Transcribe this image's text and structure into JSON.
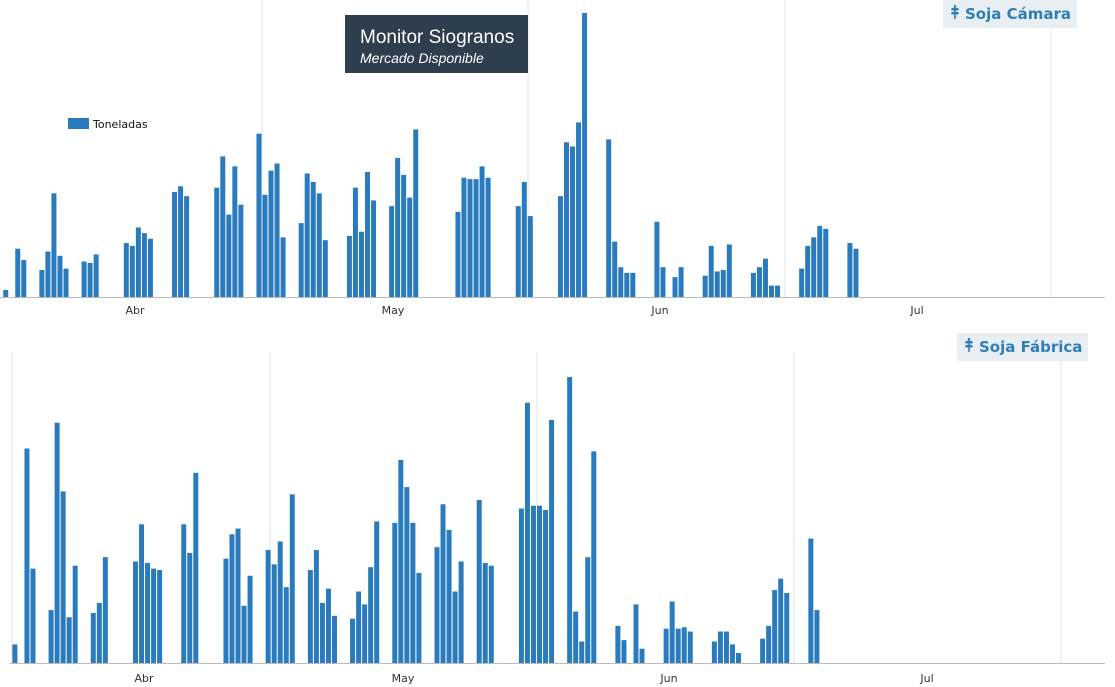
{
  "header": {
    "title": "Monitor Siogranos",
    "subtitle": "Mercado Disponible"
  },
  "colors": {
    "bar": "#2a7bbd",
    "gridline": "#e3e3e3",
    "axis": "#bbbbbb"
  },
  "chart_data": [
    {
      "type": "bar",
      "title": "Soja Cámara",
      "title_icon": "wheat-icon",
      "legend": {
        "entries": [
          "Toneladas"
        ],
        "placement": "top-left"
      },
      "grid": {
        "vertical": true,
        "horizontal": false
      },
      "month_labels": [
        "Abr",
        "May",
        "Jun",
        "Jul"
      ],
      "ylim": [
        0,
        100
      ],
      "series": [
        {
          "name": "Toneladas",
          "values": [
            2.5,
            0,
            17,
            13,
            0,
            0,
            9.5,
            16,
            36.5,
            14.5,
            10,
            0,
            0,
            12.5,
            12,
            15,
            0,
            0,
            0,
            0,
            19,
            18,
            24.5,
            22.5,
            20.5,
            0,
            0,
            0,
            37,
            39,
            35.5,
            0,
            0,
            0,
            0,
            38.5,
            49.5,
            29,
            46,
            32.5,
            0,
            0,
            57.5,
            36,
            44.5,
            47,
            21,
            0,
            0,
            26,
            43.5,
            40.5,
            36.5,
            20,
            0,
            0,
            0,
            21.5,
            38.5,
            23,
            44,
            34,
            0,
            0,
            32,
            49,
            43,
            35,
            59,
            0,
            0,
            0,
            0,
            0,
            0,
            30,
            42,
            41.5,
            41.5,
            46,
            42,
            0,
            0,
            0,
            0,
            32,
            40.5,
            28.5,
            0,
            0,
            0,
            0,
            35.5,
            54.5,
            53,
            61.5,
            100,
            0,
            0,
            0,
            55.5,
            19.5,
            10.5,
            8.5,
            8.5,
            0,
            0,
            0,
            26.5,
            10.5,
            0,
            7,
            10.5,
            0,
            0,
            0,
            7.5,
            18,
            9,
            9.5,
            18.5,
            0,
            0,
            0,
            8.5,
            10.5,
            13.5,
            4,
            4,
            0,
            0,
            0,
            10,
            18,
            21,
            25,
            24,
            0,
            0,
            0,
            19,
            17
          ]
        }
      ]
    },
    {
      "type": "bar",
      "title": "Soja Fábrica",
      "title_icon": "wheat-icon",
      "grid": {
        "vertical": true,
        "horizontal": false
      },
      "month_labels": [
        "Abr",
        "May",
        "Jun",
        "Jul"
      ],
      "ylim": [
        0,
        100
      ],
      "series": [
        {
          "name": "Toneladas",
          "values": [
            6.5,
            0,
            75,
            33,
            0,
            0,
            18.5,
            84,
            60,
            16,
            34,
            0,
            0,
            17.5,
            21,
            37,
            0,
            0,
            0,
            0,
            35.5,
            48.5,
            35,
            33,
            32.5,
            0,
            0,
            0,
            48.5,
            38.5,
            66.5,
            0,
            0,
            0,
            0,
            36.5,
            45,
            47,
            20,
            30.5,
            0,
            0,
            39.5,
            34.5,
            42.5,
            26.5,
            59,
            0,
            0,
            32.5,
            39.5,
            21,
            26,
            16.5,
            0,
            0,
            15.5,
            25,
            20.5,
            33.5,
            49.5,
            0,
            0,
            49,
            71,
            61.5,
            49,
            31.5,
            0,
            0,
            40.5,
            55.5,
            46.5,
            25,
            35.5,
            0,
            0,
            57,
            35,
            34,
            0,
            0,
            0,
            0,
            54,
            91,
            55,
            55,
            53.5,
            85,
            0,
            0,
            100,
            18,
            7.5,
            37,
            74,
            0,
            0,
            0,
            13,
            8,
            0,
            20.5,
            5,
            0,
            0,
            0,
            12,
            21.5,
            12,
            12.5,
            11,
            0,
            0,
            0,
            7.5,
            11,
            11,
            6.5,
            3.5,
            0,
            0,
            0,
            8.5,
            13,
            25.5,
            29.5,
            24.5,
            0,
            0,
            0,
            43.5,
            18.5
          ]
        }
      ]
    }
  ]
}
